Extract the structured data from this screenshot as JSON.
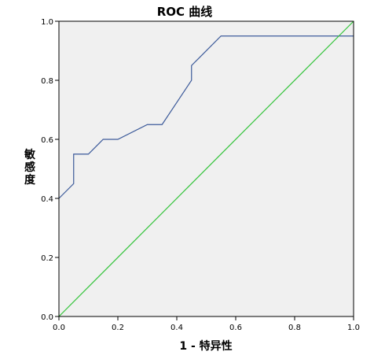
{
  "chart_data": {
    "type": "line",
    "title": "ROC 曲线",
    "xlabel": "1 - 特异性",
    "ylabel": "敏感度",
    "xlim": [
      0.0,
      1.0
    ],
    "ylim": [
      0.0,
      1.0
    ],
    "x_ticks": [
      "0.0",
      "0.2",
      "0.4",
      "0.6",
      "0.8",
      "1.0"
    ],
    "y_ticks": [
      "0.0",
      "0.2",
      "0.4",
      "0.6",
      "0.8",
      "1.0"
    ],
    "grid": false,
    "background_color": "#F0F0F0",
    "series": [
      {
        "color": "#3C5A9A",
        "points": [
          [
            0.0,
            0.4
          ],
          [
            0.05,
            0.45
          ],
          [
            0.05,
            0.55
          ],
          [
            0.1,
            0.55
          ],
          [
            0.15,
            0.6
          ],
          [
            0.2,
            0.6
          ],
          [
            0.3,
            0.65
          ],
          [
            0.35,
            0.65
          ],
          [
            0.45,
            0.8
          ],
          [
            0.45,
            0.85
          ],
          [
            0.55,
            0.95
          ],
          [
            1.0,
            0.95
          ]
        ]
      },
      {
        "color": "#33C43A",
        "points": [
          [
            0.0,
            0.0
          ],
          [
            1.0,
            1.0
          ]
        ]
      }
    ]
  }
}
